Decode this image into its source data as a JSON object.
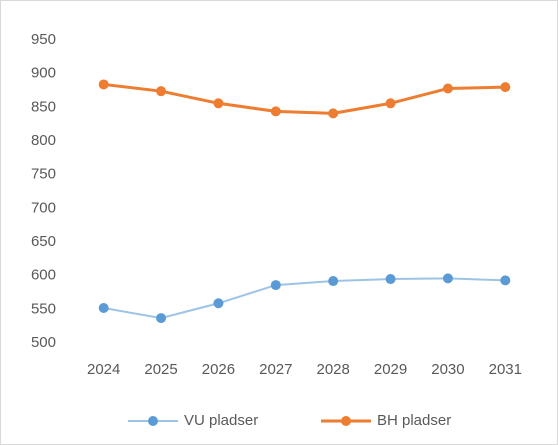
{
  "chart_data": {
    "type": "line",
    "categories": [
      "2024",
      "2025",
      "2026",
      "2027",
      "2028",
      "2029",
      "2030",
      "2031"
    ],
    "series": [
      {
        "name": "VU pladser",
        "color": "#5b9bd5",
        "values": [
          552,
          537,
          559,
          586,
          592,
          595,
          596,
          593
        ]
      },
      {
        "name": "BH pladser",
        "color": "#ed7d31",
        "values": [
          884,
          874,
          856,
          844,
          841,
          856,
          878,
          880
        ]
      }
    ],
    "ylim": [
      500,
      950
    ],
    "yticks": [
      500,
      550,
      600,
      650,
      700,
      750,
      800,
      850,
      900,
      950
    ],
    "grid": false,
    "legend": "bottom"
  }
}
